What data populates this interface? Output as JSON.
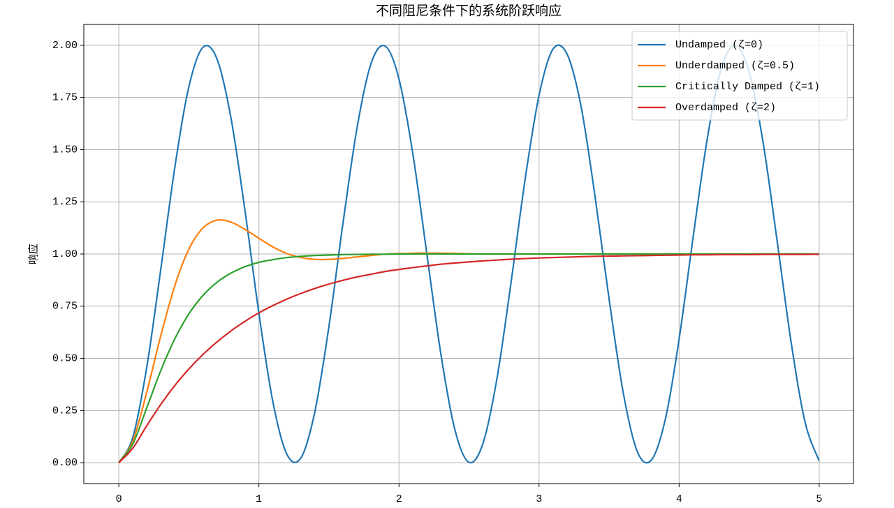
{
  "chart_data": {
    "type": "line",
    "title": "不同阻尼条件下的系统阶跃响应",
    "y_label": "响应",
    "x": [
      0,
      0.1,
      0.2,
      0.3,
      0.4,
      0.5,
      0.6,
      0.7,
      0.8,
      0.9,
      1.0,
      1.1,
      1.2,
      1.3,
      1.4,
      1.5,
      1.6,
      1.7,
      1.8,
      1.9,
      2.0,
      2.1,
      2.2,
      2.3,
      2.4,
      2.5,
      2.6,
      2.7,
      2.8,
      2.9,
      3.0,
      3.1,
      3.2,
      3.3,
      3.4,
      3.5,
      3.6,
      3.7,
      3.8,
      3.9,
      4.0,
      4.1,
      4.2,
      4.3,
      4.4,
      4.5,
      4.6,
      4.7,
      4.8,
      4.9,
      5.0
    ],
    "series": [
      {
        "name": "Undamped (ζ=0)",
        "color": "#1f77b4",
        "values": [
          0,
          0.122,
          0.46,
          0.929,
          1.416,
          1.801,
          1.99,
          1.936,
          1.654,
          1.211,
          0.716,
          0.291,
          0.04,
          0.023,
          0.246,
          0.653,
          1.146,
          1.602,
          1.911,
          1.997,
          1.839,
          1.476,
          0.996,
          0.517,
          0.156,
          0.002,
          0.093,
          0.405,
          0.863,
          1.355,
          1.76,
          1.982,
          1.958,
          1.707,
          1.275,
          0.785,
          0.34,
          0.056,
          0.011,
          0.204,
          0.592,
          1.08,
          1.548,
          1.886,
          2.0,
          1.873,
          1.533,
          1.062,
          0.576,
          0.192,
          0.009
        ]
      },
      {
        "name": "Underdamped (ζ=0.5)",
        "color": "#ff7f0e",
        "values": [
          0,
          0.104,
          0.34,
          0.61,
          0.849,
          1.023,
          1.124,
          1.162,
          1.153,
          1.118,
          1.075,
          1.034,
          1.002,
          0.983,
          0.974,
          0.974,
          0.979,
          0.986,
          0.993,
          0.999,
          1.002,
          1.004,
          1.004,
          1.004,
          1.003,
          1.001,
          1.0,
          1.0,
          1.0,
          1.0,
          1.0,
          1.0,
          1.0,
          1.0,
          1.0,
          1.0,
          1.0,
          1.0,
          1.0,
          1.0,
          1.0,
          1.0,
          1.0,
          1.0,
          1.0,
          1.0,
          1.0,
          1.0,
          1.0,
          1.0,
          1.0
        ]
      },
      {
        "name": "Critically Damped (ζ=1)",
        "color": "#2ca02c",
        "values": [
          0,
          0.09,
          0.264,
          0.442,
          0.594,
          0.713,
          0.801,
          0.864,
          0.908,
          0.939,
          0.96,
          0.973,
          0.983,
          0.989,
          0.993,
          0.995,
          0.997,
          0.998,
          0.999,
          0.999,
          1.0,
          1.0,
          1.0,
          1.0,
          1.0,
          1.0,
          1.0,
          1.0,
          1.0,
          1.0,
          1.0,
          1.0,
          1.0,
          1.0,
          1.0,
          1.0,
          1.0,
          1.0,
          1.0,
          1.0,
          1.0,
          1.0,
          1.0,
          1.0,
          1.0,
          1.0,
          1.0,
          1.0,
          1.0,
          1.0,
          1.0
        ]
      },
      {
        "name": "Overdamped (ζ=2)",
        "color": "#d62728",
        "values": [
          0,
          0.07,
          0.178,
          0.28,
          0.37,
          0.449,
          0.518,
          0.578,
          0.631,
          0.677,
          0.718,
          0.753,
          0.784,
          0.811,
          0.835,
          0.856,
          0.874,
          0.89,
          0.903,
          0.916,
          0.926,
          0.935,
          0.943,
          0.951,
          0.957,
          0.962,
          0.967,
          0.971,
          0.975,
          0.978,
          0.981,
          0.983,
          0.985,
          0.987,
          0.989,
          0.99,
          0.991,
          0.992,
          0.993,
          0.994,
          0.995,
          0.996,
          0.996,
          0.997,
          0.997,
          0.997,
          0.998,
          0.998,
          0.998,
          0.998,
          0.999
        ]
      }
    ],
    "xlim": [
      -0.25,
      5.245
    ],
    "ylim": [
      -0.1,
      2.1
    ],
    "xticks": [
      0,
      1,
      2,
      3,
      4,
      5
    ],
    "yticks": [
      {
        "value": 0,
        "label": "0.00"
      },
      {
        "value": 0.25,
        "label": "0.25"
      },
      {
        "value": 0.5,
        "label": "0.50"
      },
      {
        "value": 0.75,
        "label": "0.75"
      },
      {
        "value": 1,
        "label": "1.00"
      },
      {
        "value": 1.25,
        "label": "1.25"
      },
      {
        "value": 1.5,
        "label": "1.50"
      },
      {
        "value": 1.75,
        "label": "1.75"
      },
      {
        "value": 2,
        "label": "2.00"
      }
    ],
    "grid": true,
    "legend": "upper right"
  }
}
